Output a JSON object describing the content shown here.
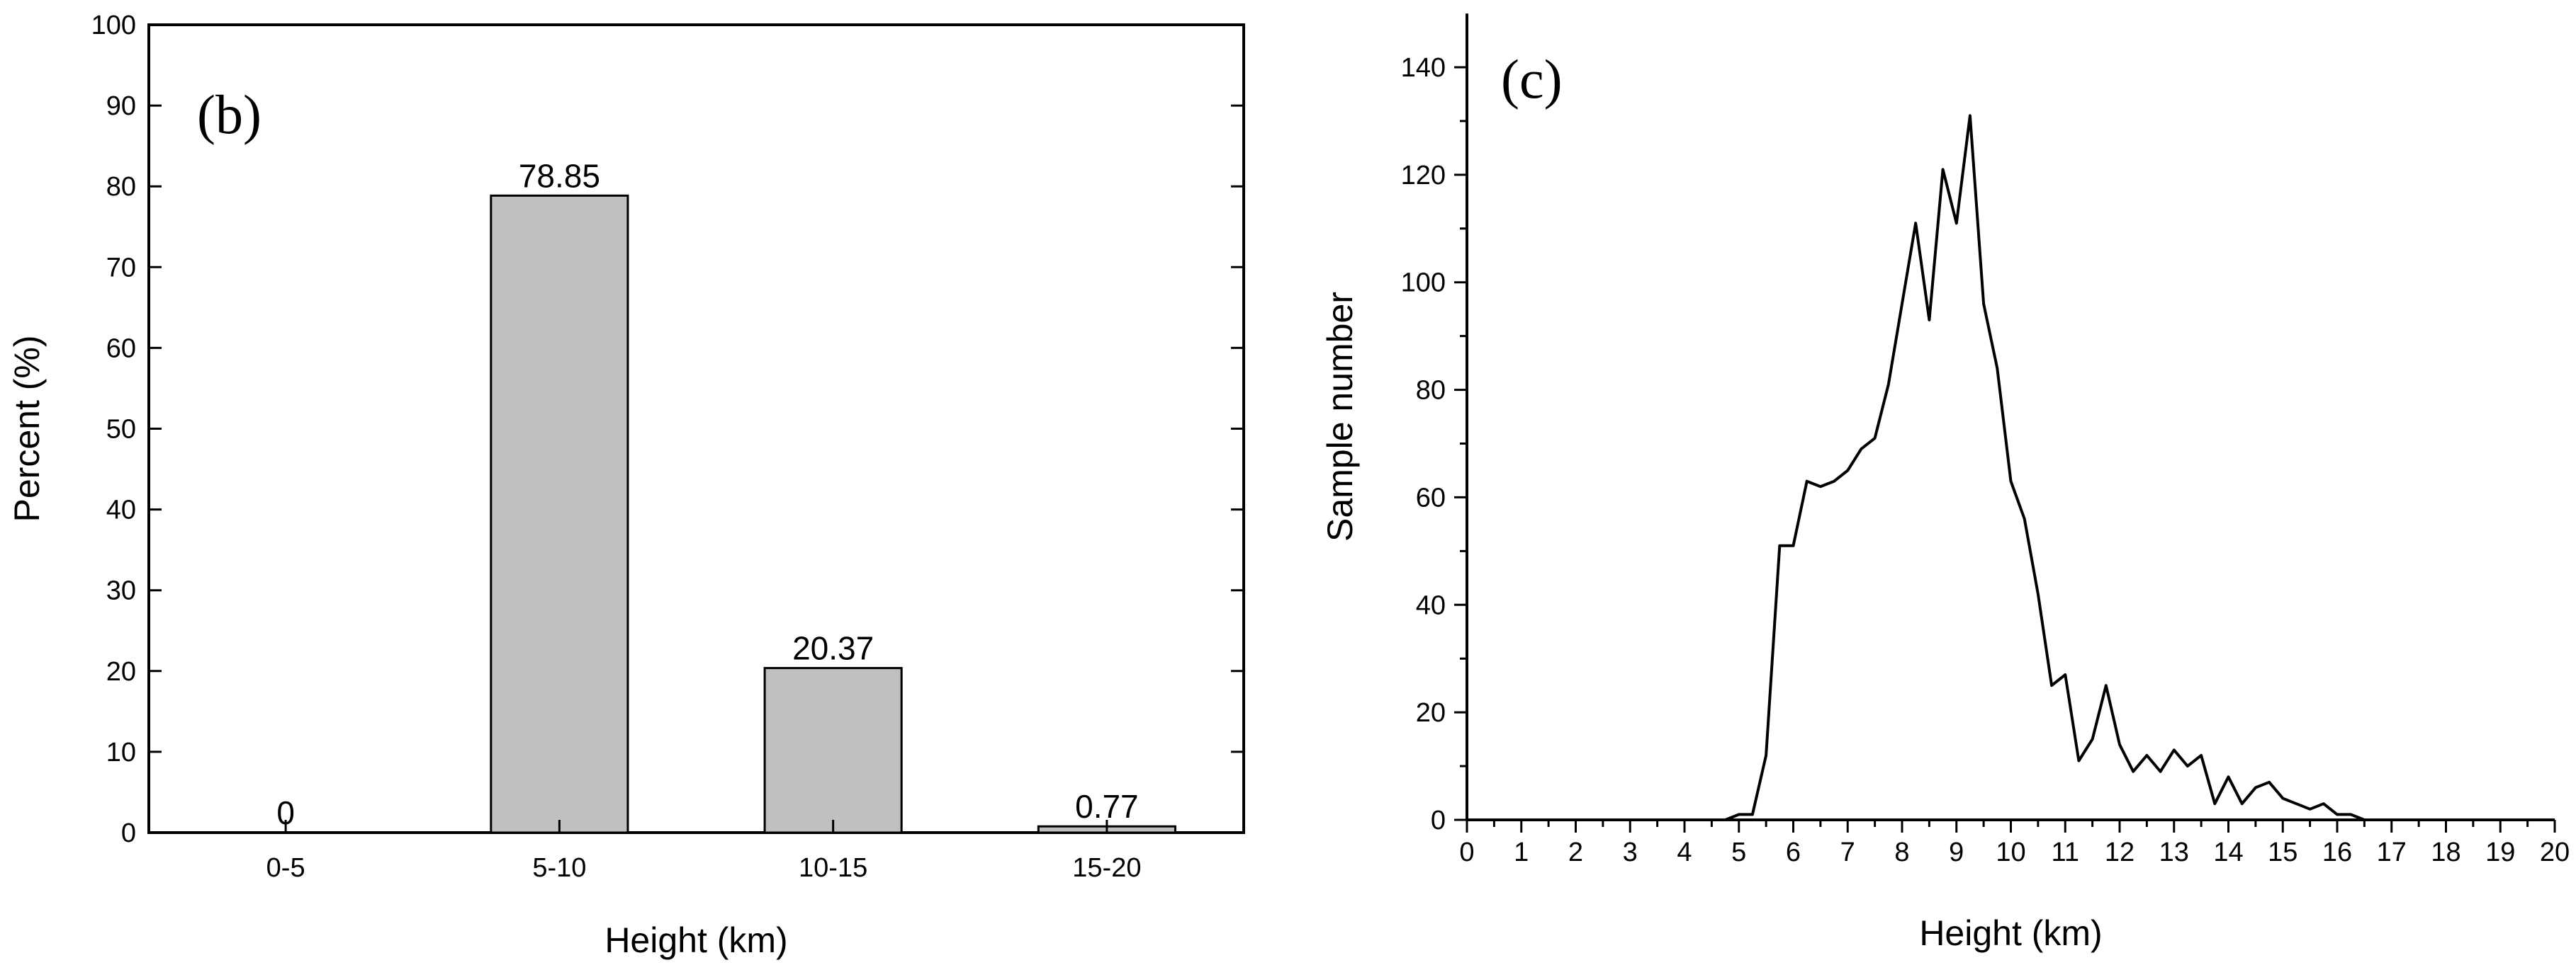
{
  "chart_data": [
    {
      "type": "bar",
      "panel_label": "(b)",
      "categories": [
        "0-5",
        "5-10",
        "10-15",
        "15-20"
      ],
      "values": [
        0,
        78.85,
        20.37,
        0.77
      ],
      "data_labels": [
        "0",
        "78.85",
        "20.37",
        "0.77"
      ],
      "xlabel": "Height (km)",
      "ylabel": "Percent (%)",
      "ylim": [
        0,
        100
      ],
      "yticks": [
        0,
        10,
        20,
        30,
        40,
        50,
        60,
        70,
        80,
        90,
        100
      ],
      "grid": false,
      "bar_color": "#c0c0c0",
      "edge_color": "#000000"
    },
    {
      "type": "line",
      "panel_label": "(c)",
      "x": [
        0,
        0.5,
        1,
        1.5,
        2,
        2.5,
        3,
        3.5,
        4,
        4.5,
        4.75,
        5,
        5.25,
        5.5,
        5.75,
        6,
        6.25,
        6.5,
        6.75,
        7,
        7.25,
        7.5,
        7.75,
        8,
        8.25,
        8.5,
        8.75,
        9,
        9.25,
        9.5,
        9.75,
        10,
        10.25,
        10.5,
        10.75,
        11,
        11.25,
        11.5,
        11.75,
        12,
        12.25,
        12.5,
        12.75,
        13,
        13.25,
        13.5,
        13.75,
        14,
        14.25,
        14.5,
        14.75,
        15,
        15.25,
        15.5,
        15.75,
        16,
        16.25,
        16.5
      ],
      "series": [
        {
          "values": [
            0,
            0,
            0,
            0,
            0,
            0,
            0,
            0,
            0,
            0,
            0,
            1,
            1,
            12,
            51,
            51,
            63,
            62,
            63,
            65,
            69,
            71,
            81,
            96,
            111,
            93,
            121,
            111,
            131,
            96,
            84,
            63,
            56,
            42,
            25,
            27,
            11,
            15,
            25,
            14,
            9,
            12,
            9,
            13,
            10,
            12,
            3,
            8,
            3,
            6,
            7,
            4,
            3,
            2,
            3,
            1,
            1,
            0
          ],
          "color": "#000000"
        }
      ],
      "xlabel": "Height (km)",
      "ylabel": "Sample number",
      "xlim": [
        0,
        20
      ],
      "ylim": [
        0,
        150
      ],
      "xticks": [
        0,
        1,
        2,
        3,
        4,
        5,
        6,
        7,
        8,
        9,
        10,
        11,
        12,
        13,
        14,
        15,
        16,
        17,
        18,
        19,
        20
      ],
      "yticks": [
        0,
        20,
        40,
        60,
        80,
        100,
        120,
        140
      ],
      "grid": false,
      "frame": "left-bottom"
    }
  ]
}
